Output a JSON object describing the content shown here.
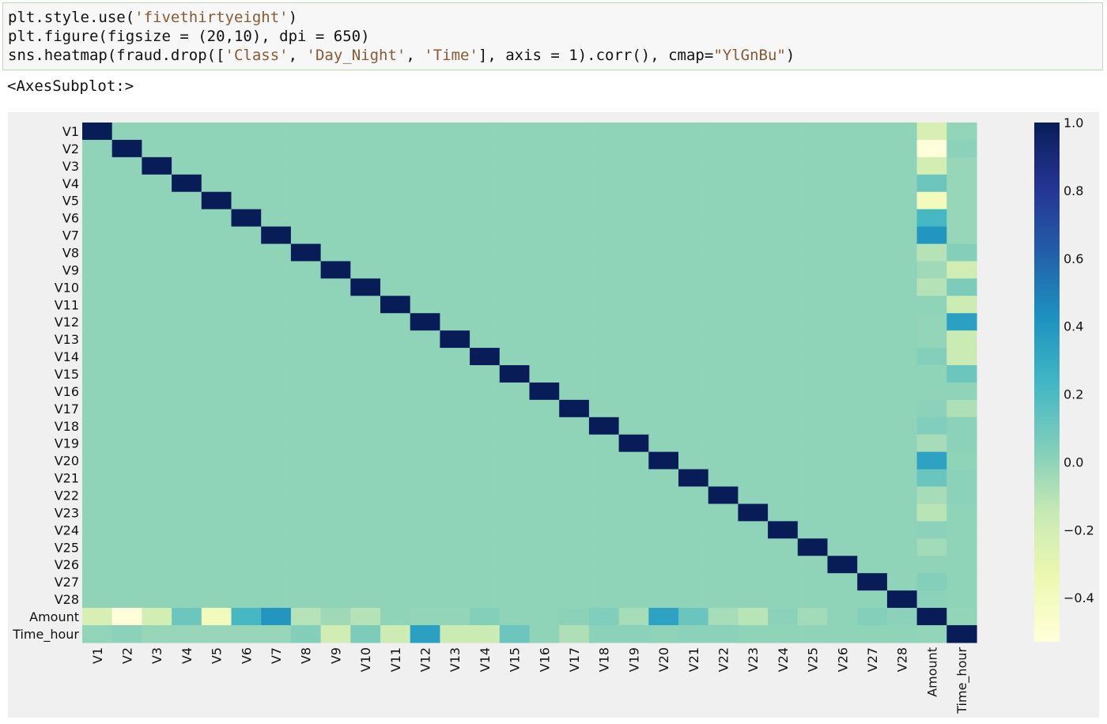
{
  "code_cell": {
    "lines": [
      [
        {
          "t": "plt.style.use("
        },
        {
          "t": "'fivethirtyeight'",
          "s": true
        },
        {
          "t": ")"
        }
      ],
      [
        {
          "t": "plt.figure(figsize = (20,10), dpi = 650)"
        }
      ],
      [
        {
          "t": "sns.heatmap(fraud.drop(["
        },
        {
          "t": "'Class'",
          "s": true
        },
        {
          "t": ", "
        },
        {
          "t": "'Day_Night'",
          "s": true
        },
        {
          "t": ", "
        },
        {
          "t": "'Time'",
          "s": true
        },
        {
          "t": "], axis = 1).corr(), cmap="
        },
        {
          "t": "\"YlGnBu\"",
          "s": true
        },
        {
          "t": ")"
        }
      ]
    ]
  },
  "output": {
    "text": "<AxesSubplot:>"
  },
  "chart_data": {
    "type": "heatmap",
    "cmap": "YlGnBu",
    "labels": [
      "V1",
      "V2",
      "V3",
      "V4",
      "V5",
      "V6",
      "V7",
      "V8",
      "V9",
      "V10",
      "V11",
      "V12",
      "V13",
      "V14",
      "V15",
      "V16",
      "V17",
      "V18",
      "V19",
      "V20",
      "V21",
      "V22",
      "V23",
      "V24",
      "V25",
      "V26",
      "V27",
      "V28",
      "Amount",
      "Time_hour"
    ],
    "amount_corr": [
      -0.23,
      -0.53,
      -0.21,
      0.1,
      -0.39,
      0.22,
      0.4,
      -0.1,
      -0.04,
      -0.1,
      0.0,
      -0.01,
      -0.01,
      0.03,
      0.0,
      0.0,
      0.01,
      0.04,
      -0.06,
      0.34,
      0.11,
      -0.06,
      -0.11,
      0.01,
      -0.05,
      0.0,
      0.03,
      0.01,
      1.0,
      -0.01
    ],
    "time_hour_corr": [
      -0.01,
      0.01,
      -0.02,
      -0.02,
      -0.02,
      -0.02,
      -0.02,
      0.03,
      -0.2,
      0.05,
      -0.18,
      0.35,
      -0.17,
      -0.17,
      0.1,
      0.0,
      -0.08,
      0.01,
      0.01,
      0.0,
      0.01,
      0.01,
      0.0,
      0.0,
      0.0,
      0.0,
      0.0,
      0.0,
      -0.01,
      1.0
    ],
    "colorbar": {
      "vmin": -0.53,
      "vmax": 1.0,
      "ticks": [
        1.0,
        0.8,
        0.6,
        0.4,
        0.2,
        0.0,
        -0.2,
        -0.4
      ],
      "tick_labels": [
        "1.0",
        "0.8",
        "0.6",
        "0.4",
        "0.2",
        "0.0",
        "−0.2",
        "−0.4"
      ]
    }
  }
}
